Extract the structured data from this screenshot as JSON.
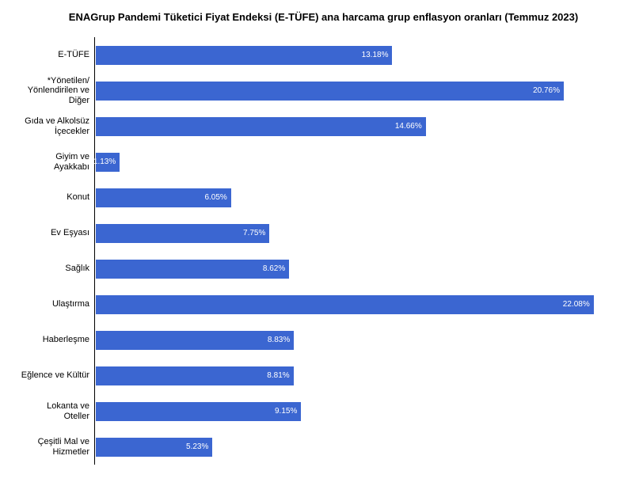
{
  "chart": {
    "type": "bar-horizontal",
    "title": "ENAGrup Pandemi Tüketici Fiyat Endeksi (E-TÜFE) ana harcama grup enflasyon oranları (Temmuz 2023)",
    "title_fontsize": 13,
    "background_color": "#ffffff",
    "bar_color": "#3b66d1",
    "bar_border_color": "#ffffff",
    "bar_label_color": "#ffffff",
    "axis_line_color": "#000000",
    "label_fontsize": 11,
    "value_fontsize": 10,
    "xlim_max": 23.0,
    "categories": [
      {
        "label": "E-TÜFE",
        "value": 13.18,
        "display": "13.18%"
      },
      {
        "label": "*Yönetilen/\nYönlendirilen ve\nDiğer",
        "value": 20.76,
        "display": "20.76%"
      },
      {
        "label": "Gıda ve Alkolsüz\nİçecekler",
        "value": 14.66,
        "display": "14.66%"
      },
      {
        "label": "Giyim ve\nAyakkabı",
        "value": 1.13,
        "display": "1.13%"
      },
      {
        "label": "Konut",
        "value": 6.05,
        "display": "6.05%"
      },
      {
        "label": "Ev Eşyası",
        "value": 7.75,
        "display": "7.75%"
      },
      {
        "label": "Sağlık",
        "value": 8.62,
        "display": "8.62%"
      },
      {
        "label": "Ulaştırma",
        "value": 22.08,
        "display": "22.08%"
      },
      {
        "label": "Haberleşme",
        "value": 8.83,
        "display": "8.83%"
      },
      {
        "label": "Eğlence ve Kültür",
        "value": 8.81,
        "display": "8.81%"
      },
      {
        "label": "Lokanta ve\nOteller",
        "value": 9.15,
        "display": "9.15%"
      },
      {
        "label": "Çeşitli Mal ve\nHizmetler",
        "value": 5.23,
        "display": "5.23%"
      }
    ]
  }
}
